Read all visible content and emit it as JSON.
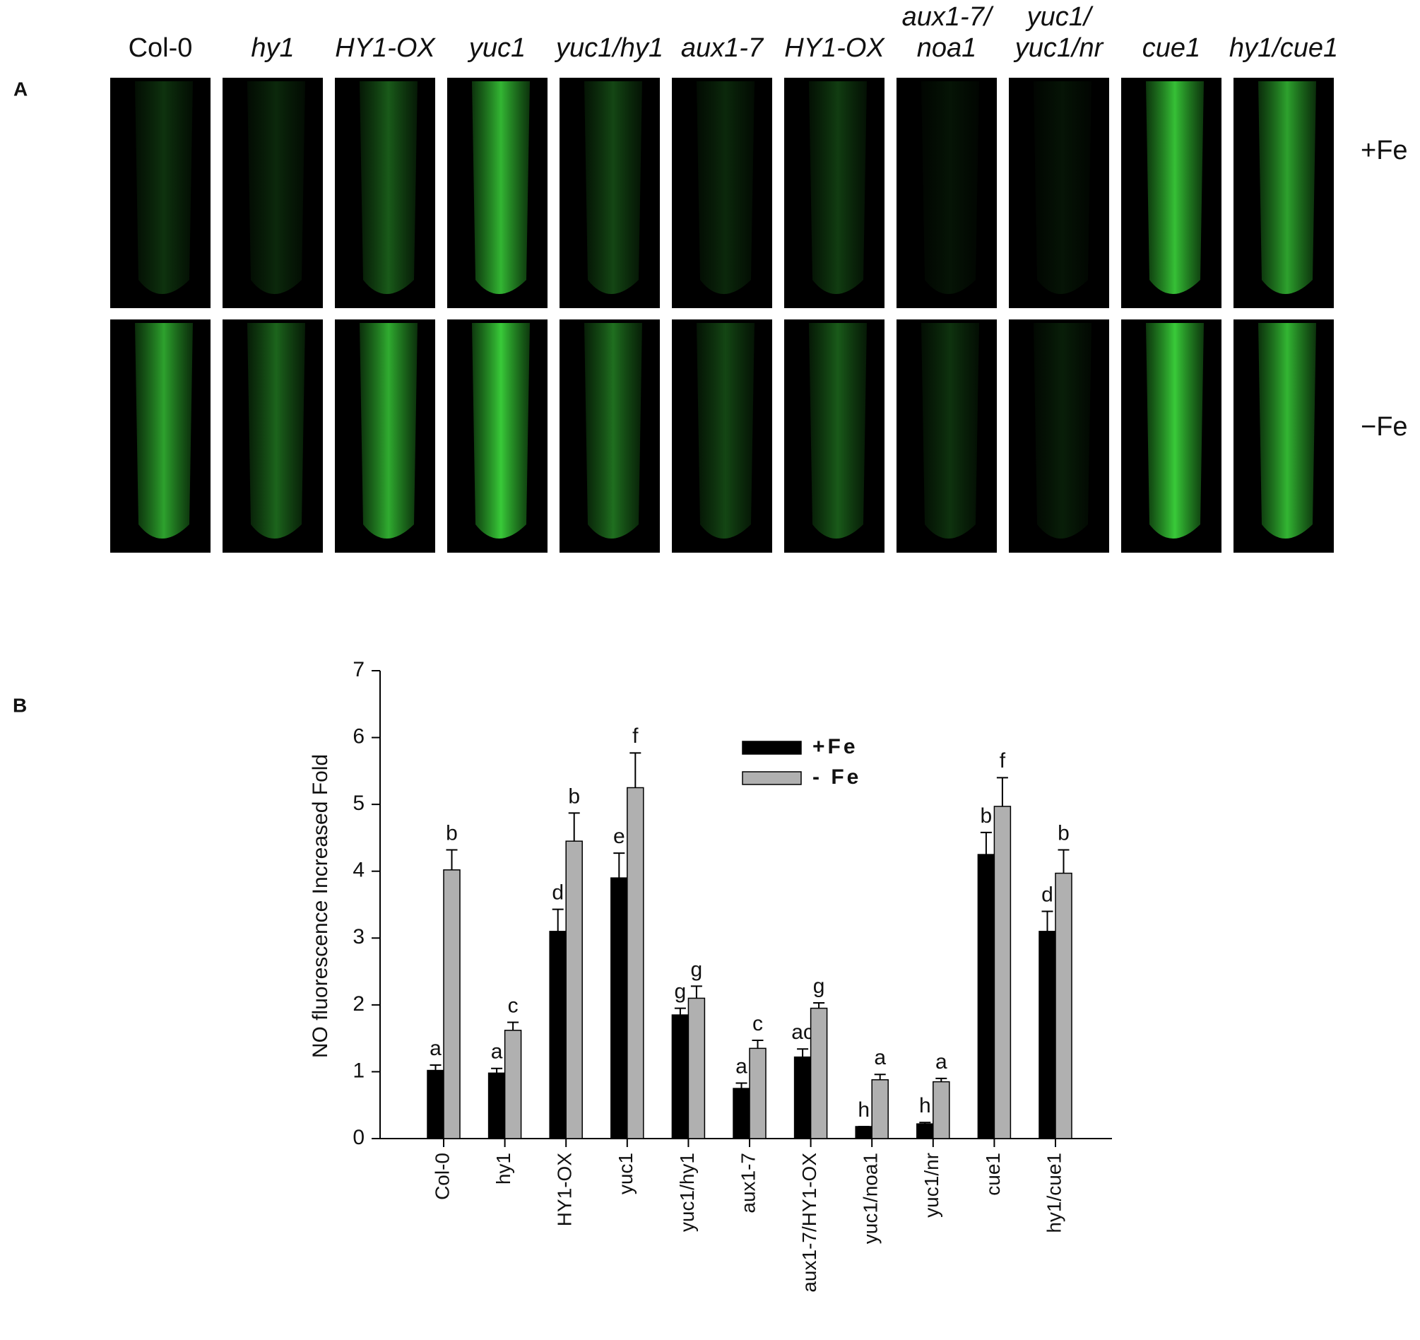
{
  "panel_a": {
    "letter": "A",
    "columns": [
      [
        "Col-0"
      ],
      [
        "hy1"
      ],
      [
        "HY1-OX"
      ],
      [
        "yuc1"
      ],
      [
        "yuc1/hy1"
      ],
      [
        "aux1-7"
      ],
      [
        "HY1-OX"
      ],
      [
        "aux1-7/",
        "noa1"
      ],
      [
        "yuc1/",
        "yuc1/nr"
      ],
      [
        "cue1"
      ],
      [
        "hy1/cue1"
      ]
    ],
    "rows": [
      "+Fe",
      "−Fe"
    ]
  },
  "panel_b": {
    "letter": "B"
  },
  "chart_data": {
    "type": "bar",
    "y_label": "NO fluorescence Increased Fold",
    "categories": [
      "Col-0",
      "hy1",
      "HY1-OX",
      "yuc1",
      "yuc1/hy1",
      "aux1-7",
      "aux1-7/HY1-OX",
      "yuc1/noa1",
      "yuc1/nr",
      "cue1",
      "hy1/cue1"
    ],
    "series": [
      {
        "name": "+Fe",
        "color": "#000000",
        "values": [
          1.02,
          0.98,
          3.1,
          3.9,
          1.85,
          0.75,
          1.22,
          0.18,
          0.22,
          4.25,
          3.1
        ],
        "errors": [
          0.08,
          0.07,
          0.33,
          0.37,
          0.1,
          0.08,
          0.12,
          0,
          0.02,
          0.33,
          0.3
        ],
        "letters": [
          "a",
          "a",
          "d",
          "e",
          "g",
          "a",
          "ac",
          "h",
          "h",
          "b",
          "d"
        ]
      },
      {
        "name": "- Fe",
        "color": "#b0b0b0",
        "values": [
          4.02,
          1.62,
          4.45,
          5.25,
          2.1,
          1.35,
          1.95,
          0.88,
          0.85,
          4.97,
          3.97
        ],
        "errors": [
          0.3,
          0.12,
          0.42,
          0.52,
          0.18,
          0.12,
          0.08,
          0.08,
          0.05,
          0.43,
          0.35
        ],
        "letters": [
          "b",
          "c",
          "b",
          "f",
          "g",
          "c",
          "g",
          "a",
          "a",
          "f",
          "b"
        ]
      }
    ],
    "ylim": [
      0,
      7
    ],
    "yticks": [
      0,
      1,
      2,
      3,
      4,
      5,
      6,
      7
    ],
    "grid": false
  }
}
